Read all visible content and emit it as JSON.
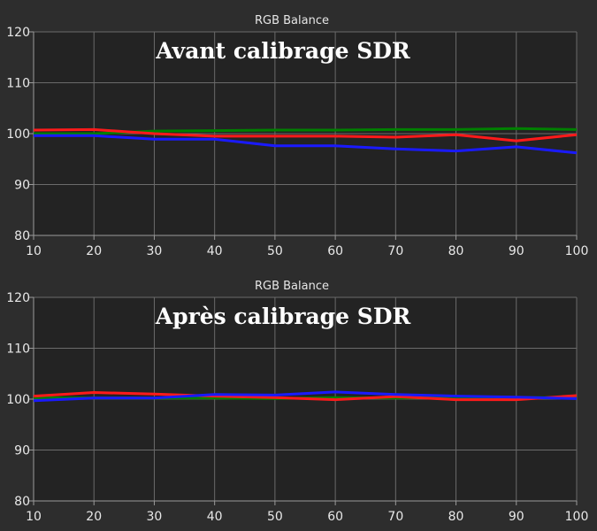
{
  "chart_data": [
    {
      "type": "line",
      "title": "RGB Balance",
      "overlay_text": "Avant calibrage SDR",
      "xlabel": "",
      "ylabel": "",
      "x": [
        10,
        20,
        30,
        40,
        50,
        60,
        70,
        80,
        90,
        100
      ],
      "xlim": [
        10,
        100
      ],
      "ylim": [
        80,
        120
      ],
      "x_ticks": [
        10,
        20,
        30,
        40,
        50,
        60,
        70,
        80,
        90,
        100
      ],
      "y_ticks": [
        80,
        90,
        100,
        110,
        120
      ],
      "grid": true,
      "series": [
        {
          "color": "#008000",
          "values": [
            100.0,
            100.0,
            100.5,
            100.6,
            100.7,
            100.7,
            100.8,
            100.8,
            101.0,
            100.8
          ]
        },
        {
          "color": "#ff1a1a",
          "values": [
            100.7,
            100.8,
            100.0,
            99.5,
            99.5,
            99.5,
            99.3,
            99.8,
            98.6,
            99.8
          ]
        },
        {
          "color": "#1a1aff",
          "values": [
            99.6,
            99.6,
            98.9,
            98.9,
            97.6,
            97.6,
            97.0,
            96.6,
            97.4,
            96.2
          ]
        }
      ]
    },
    {
      "type": "line",
      "title": "RGB Balance",
      "overlay_text": "Après calibrage SDR",
      "xlabel": "",
      "ylabel": "",
      "x": [
        10,
        20,
        30,
        40,
        50,
        60,
        70,
        80,
        90,
        100
      ],
      "xlim": [
        10,
        100
      ],
      "ylim": [
        80,
        120
      ],
      "x_ticks": [
        10,
        20,
        30,
        40,
        50,
        60,
        70,
        80,
        90,
        100
      ],
      "y_ticks": [
        80,
        90,
        100,
        110,
        120
      ],
      "grid": true,
      "series": [
        {
          "color": "#008000",
          "values": [
            100.3,
            100.2,
            100.2,
            100.2,
            100.1,
            100.3,
            100.2,
            100.3,
            100.3,
            100.3
          ]
        },
        {
          "color": "#ff1a1a",
          "values": [
            100.6,
            101.3,
            101.0,
            100.6,
            100.3,
            99.9,
            100.5,
            99.9,
            99.9,
            100.7
          ]
        },
        {
          "color": "#1a1aff",
          "values": [
            99.7,
            100.2,
            100.2,
            100.9,
            100.8,
            101.4,
            100.9,
            100.6,
            100.4,
            100.1
          ]
        }
      ]
    }
  ]
}
